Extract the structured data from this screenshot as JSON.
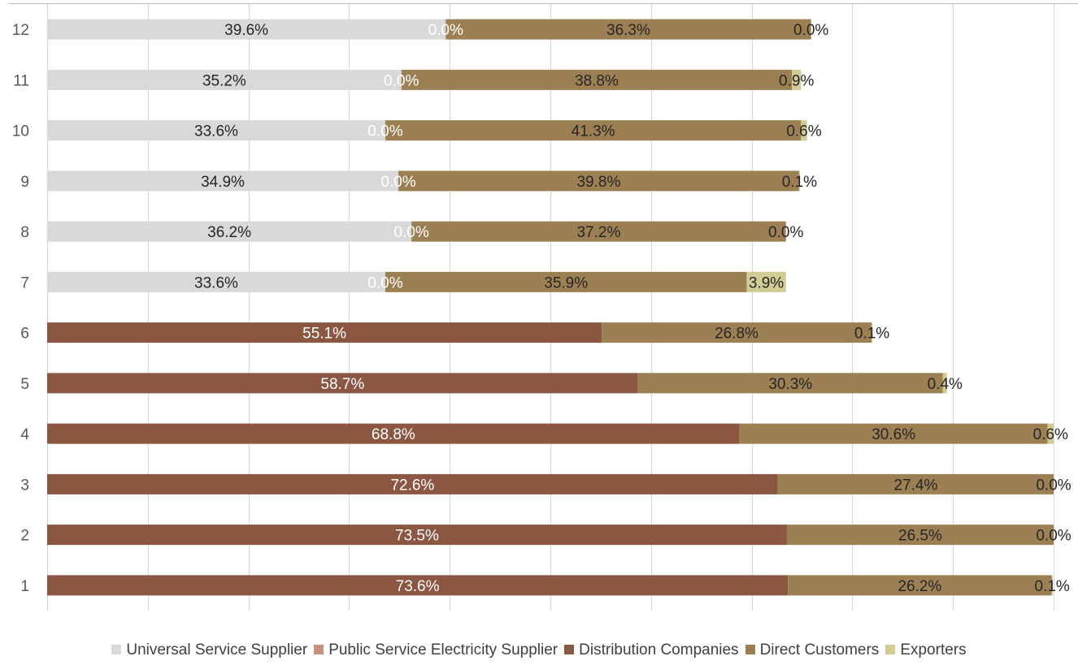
{
  "chart_data": {
    "type": "bar",
    "orientation": "horizontal",
    "stacked": true,
    "title": "",
    "xlabel": "",
    "ylabel": "",
    "categories": [
      "1",
      "2",
      "3",
      "4",
      "5",
      "6",
      "7",
      "8",
      "9",
      "10",
      "11",
      "12"
    ],
    "xlim": [
      0,
      100
    ],
    "grid": true,
    "legend_position": "bottom",
    "series": [
      {
        "name": "Universal Service Supplier",
        "color": "#d9d9d9",
        "values": [
          null,
          null,
          null,
          null,
          null,
          null,
          33.6,
          36.2,
          34.9,
          33.6,
          35.2,
          39.6
        ],
        "labels": [
          "",
          "",
          "",
          "",
          "",
          "",
          "33.6%",
          "36.2%",
          "34.9%",
          "33.6%",
          "35.2%",
          "39.6%"
        ]
      },
      {
        "name": "Public Service Electricity Supplier",
        "color": "#c4927e",
        "values": [
          null,
          null,
          null,
          null,
          null,
          null,
          0.0,
          0.0,
          0.0,
          0.0,
          0.0,
          0.0
        ],
        "labels": [
          "",
          "",
          "",
          "",
          "",
          "",
          "0.0%",
          "0.0%",
          "0.0%",
          "0.0%",
          "0.0%",
          "0.0%"
        ]
      },
      {
        "name": "Distribution Companies",
        "color": "#8b5742",
        "values": [
          73.6,
          73.5,
          72.6,
          68.8,
          58.7,
          55.1,
          null,
          null,
          null,
          null,
          null,
          null
        ],
        "labels": [
          "73.6%",
          "73.5%",
          "72.6%",
          "68.8%",
          "58.7%",
          "55.1%",
          "",
          "",
          "",
          "",
          "",
          ""
        ]
      },
      {
        "name": "Direct Customers",
        "color": "#9c8054",
        "values": [
          26.2,
          26.5,
          27.4,
          30.6,
          30.3,
          26.8,
          35.9,
          37.2,
          39.8,
          41.3,
          38.8,
          36.3
        ],
        "labels": [
          "26.2%",
          "26.5%",
          "27.4%",
          "30.6%",
          "30.3%",
          "26.8%",
          "35.9%",
          "37.2%",
          "39.8%",
          "41.3%",
          "38.8%",
          "36.3%"
        ]
      },
      {
        "name": "Exporters",
        "color": "#d1cb94",
        "values": [
          0.1,
          0.0,
          0.0,
          0.6,
          0.4,
          0.1,
          3.9,
          0.0,
          0.1,
          0.6,
          0.9,
          0.0
        ],
        "labels": [
          "0.1%",
          "0.0%",
          "0.0%",
          "0.6%",
          "0.4%",
          "0.1%",
          "3.9%",
          "0.0%",
          "0.1%",
          "0.6%",
          "0.9%",
          "0.0%"
        ]
      }
    ]
  }
}
